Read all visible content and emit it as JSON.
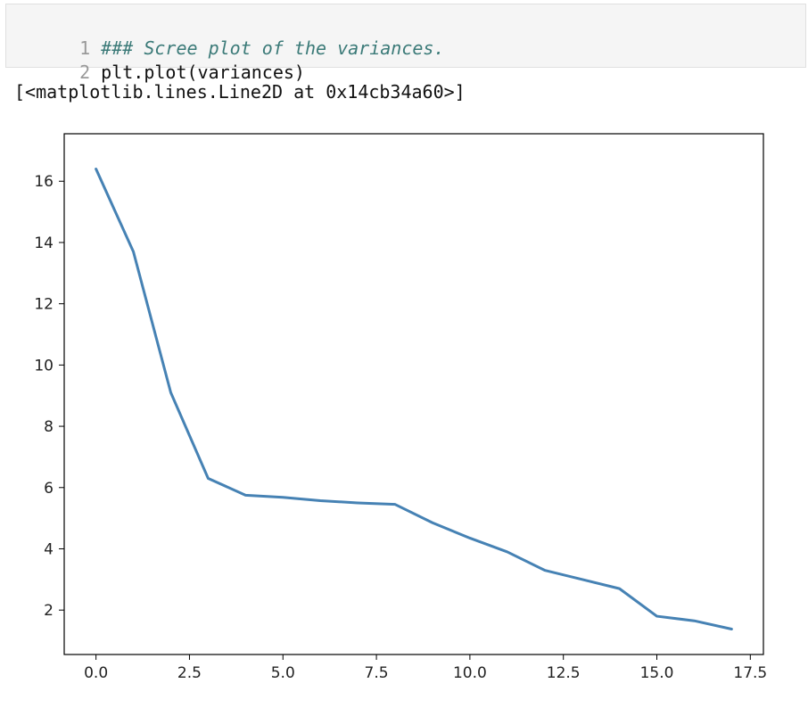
{
  "cell": {
    "lines": [
      {
        "number": "1",
        "text": "### Scree plot of the variances."
      },
      {
        "number": "2",
        "text": "plt.plot(variances)"
      }
    ]
  },
  "output_text": "[<matplotlib.lines.Line2D at 0x14cb34a60>]",
  "colors": {
    "line": "#4682b4"
  },
  "chart_data": {
    "type": "line",
    "title": "",
    "xlabel": "",
    "ylabel": "",
    "x": [
      0,
      1,
      2,
      3,
      4,
      5,
      6,
      7,
      8,
      9,
      10,
      11,
      12,
      13,
      14,
      15,
      16,
      17
    ],
    "series": [
      {
        "values": [
          16.4,
          13.7,
          9.1,
          6.3,
          5.75,
          5.68,
          5.57,
          5.5,
          5.45,
          4.85,
          4.35,
          3.9,
          3.3,
          3.0,
          2.7,
          1.8,
          1.65,
          1.38
        ]
      }
    ],
    "xlim": [
      -0.85,
      17.85
    ],
    "ylim": [
      0.55,
      17.55
    ],
    "xticks": [
      0.0,
      2.5,
      5.0,
      7.5,
      10.0,
      12.5,
      15.0,
      17.5
    ],
    "xtick_labels": [
      "0.0",
      "2.5",
      "5.0",
      "7.5",
      "10.0",
      "12.5",
      "15.0",
      "17.5"
    ],
    "yticks": [
      2,
      4,
      6,
      8,
      10,
      12,
      14,
      16
    ],
    "ytick_labels": [
      "2",
      "4",
      "6",
      "8",
      "10",
      "12",
      "14",
      "16"
    ],
    "grid": false,
    "legend": "none"
  }
}
